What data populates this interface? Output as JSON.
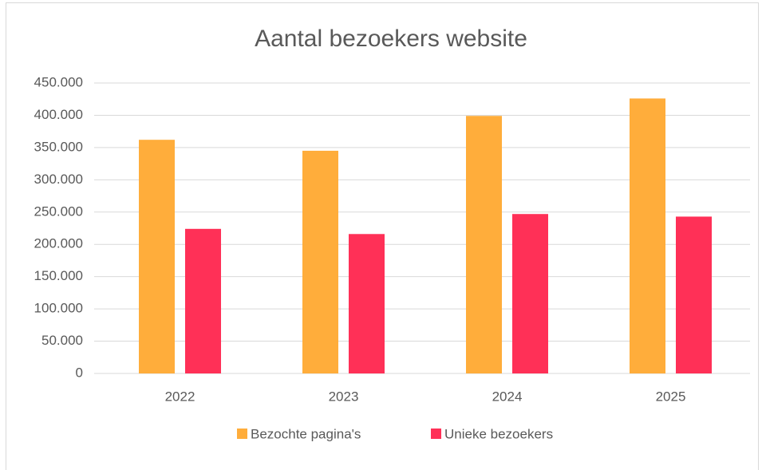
{
  "chart_data": {
    "type": "bar",
    "title": "Aantal bezoekers website",
    "categories": [
      "2022",
      "2023",
      "2024",
      "2025"
    ],
    "series": [
      {
        "name": "Bezochte pagina's",
        "color": "#ffad3b",
        "values": [
          362000,
          345000,
          399000,
          426000
        ]
      },
      {
        "name": "Unieke bezoekers",
        "color": "#ff3057",
        "values": [
          224000,
          216000,
          247000,
          243000
        ]
      }
    ],
    "ylim": [
      0,
      450000
    ],
    "yticks": [
      0,
      {
        "value": 50000,
        "label": "50.000"
      },
      {
        "value": 100000,
        "label": "100.000"
      },
      {
        "value": 150000,
        "label": "150.000"
      },
      {
        "value": 200000,
        "label": "200.000"
      },
      {
        "value": 250000,
        "label": "250.000"
      },
      {
        "value": 300000,
        "label": "300.000"
      },
      {
        "value": 350000,
        "label": "350.000"
      },
      {
        "value": 400000,
        "label": "400.000"
      },
      {
        "value": 450000,
        "label": "450.000"
      }
    ],
    "grid": true,
    "legend": "bottom"
  }
}
